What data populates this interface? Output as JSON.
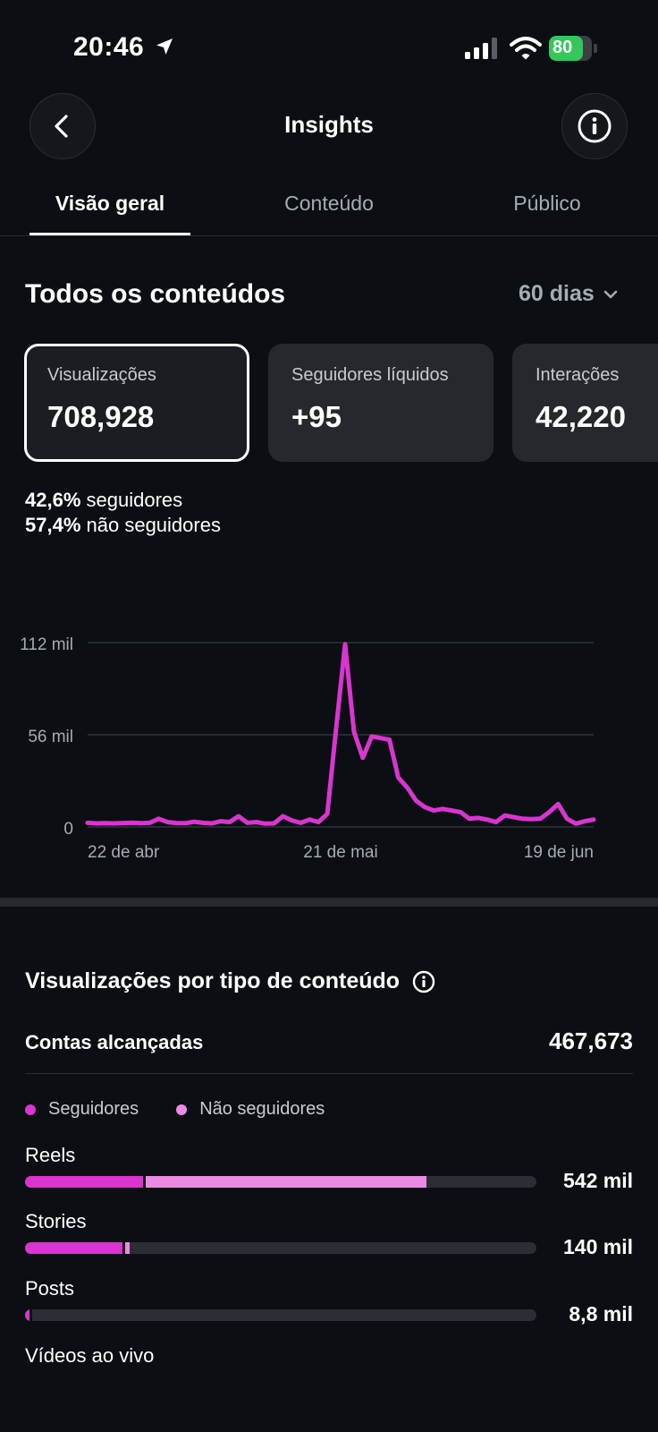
{
  "status_bar": {
    "time": "20:46",
    "battery": "80"
  },
  "header": {
    "title": "Insights"
  },
  "tabs": [
    {
      "label": "Visão geral",
      "active": true
    },
    {
      "label": "Conteúdo",
      "active": false
    },
    {
      "label": "Público",
      "active": false
    }
  ],
  "section": {
    "title": "Todos os conteúdos",
    "period": "60 dias"
  },
  "cards": [
    {
      "label": "Visualizações",
      "value": "708,928"
    },
    {
      "label": "Seguidores líquidos",
      "value": "+95"
    },
    {
      "label": "Interações",
      "value": "42,220"
    }
  ],
  "split": [
    {
      "pct": "42,6%",
      "label": "seguidores"
    },
    {
      "pct": "57,4%",
      "label": "não seguidores"
    }
  ],
  "colors": {
    "accent": "#d935cf",
    "accent_light": "#ec8be3",
    "background": "#0b0e12",
    "battery": "#34c759"
  },
  "chart_data": {
    "type": "line",
    "title": "",
    "x_tick_labels": [
      "22 de abr",
      "21 de mai",
      "19 de jun"
    ],
    "y_tick_labels": [
      "112 mil",
      "56 mil",
      "0"
    ],
    "ylim": [
      0,
      112000
    ],
    "grid": true,
    "series": [
      {
        "values": [
          2500,
          2200,
          2300,
          2200,
          2400,
          2600,
          2300,
          2500,
          5000,
          3000,
          2400,
          2300,
          3200,
          2500,
          2200,
          3500,
          3000,
          6500,
          2500,
          3000,
          2000,
          2200,
          6500,
          4000,
          2500,
          4500,
          3000,
          8000,
          60000,
          111000,
          58000,
          42000,
          55000,
          54000,
          53000,
          30000,
          24000,
          16000,
          12000,
          10000,
          11000,
          10000,
          9000,
          5000,
          5500,
          4500,
          3000,
          7000,
          6000,
          5000,
          4800,
          5000,
          9000,
          14000,
          5000,
          2000,
          3500,
          4500
        ]
      }
    ]
  },
  "content_types": {
    "title": "Visualizações por tipo de conteúdo",
    "reach_label": "Contas alcançadas",
    "reach_value": "467,673",
    "legend": [
      {
        "label": "Seguidores",
        "color": "#d935cf"
      },
      {
        "label": "Não seguidores",
        "color": "#ec8be3"
      }
    ],
    "rows": [
      {
        "label": "Reels",
        "value": "542 mil",
        "followers_fraction": 0.23,
        "non_followers_fraction": 0.555
      },
      {
        "label": "Stories",
        "value": "140 mil",
        "followers_fraction": 0.19,
        "non_followers_fraction": 0.014
      },
      {
        "label": "Posts",
        "value": "8,8 mil",
        "followers_fraction": 0.009,
        "non_followers_fraction": 0.004
      },
      {
        "label": "Vídeos ao vivo",
        "value": "",
        "followers_fraction": 0,
        "non_followers_fraction": 0
      }
    ]
  }
}
